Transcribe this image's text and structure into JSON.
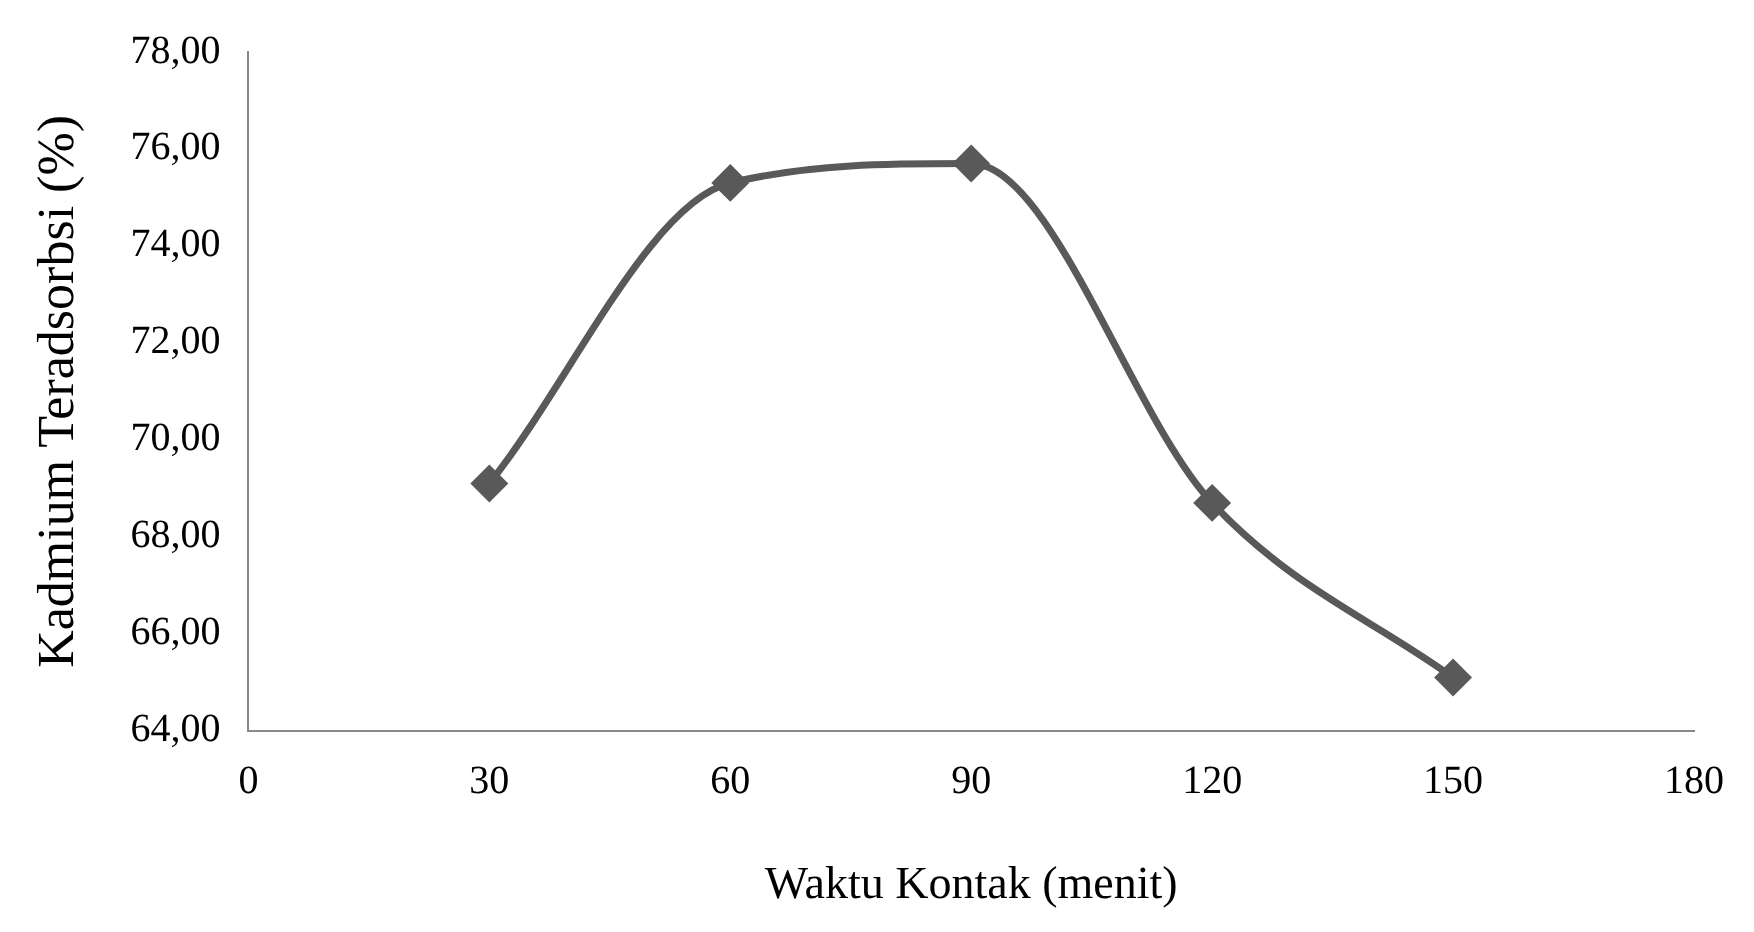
{
  "chart_data": {
    "type": "line",
    "xlabel": "Waktu Kontak (menit)",
    "ylabel": "Kadmium Teradsorbsi (%)",
    "x": [
      30,
      60,
      90,
      120,
      150
    ],
    "series": [
      {
        "color": "#595959",
        "values": [
          69.1,
          75.3,
          75.7,
          68.7,
          65.1
        ]
      }
    ],
    "xlim": [
      0,
      180
    ],
    "xticks": [
      0,
      30,
      60,
      90,
      120,
      150,
      180
    ],
    "ylim": [
      64,
      78
    ],
    "yticks": [
      {
        "value": 64,
        "label": "64,00"
      },
      {
        "value": 66,
        "label": "66,00"
      },
      {
        "value": 68,
        "label": "68,00"
      },
      {
        "value": 70,
        "label": "70,00"
      },
      {
        "value": 72,
        "label": "72,00"
      },
      {
        "value": 74,
        "label": "74,00"
      },
      {
        "value": 76,
        "label": "76,00"
      },
      {
        "value": 78,
        "label": "78,00"
      }
    ],
    "grid": false,
    "legend": false,
    "marker": "diamond",
    "line_style": "solid"
  }
}
